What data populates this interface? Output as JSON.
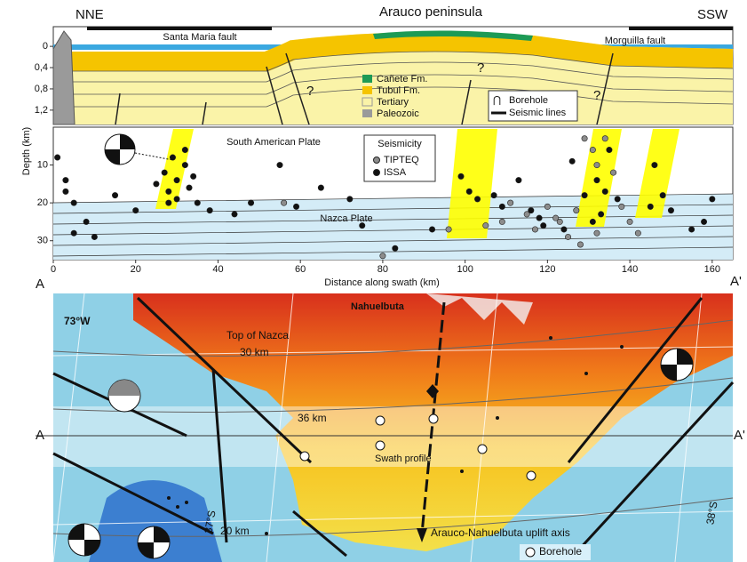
{
  "figure": {
    "nne": "NNE",
    "ssw": "SSW",
    "peninsula": "Arauco peninsula",
    "santa_maria": "Santa Maria fault",
    "morguilla": "Morguilla fault",
    "question_mark": "?",
    "legend_units": [
      "Cañete Fm.",
      "Tubul Fm.",
      "Tertiary",
      "Paleozoic"
    ],
    "legend_symbols": [
      "Borehole",
      "Seismic lines"
    ],
    "south_american_plate": "South American Plate",
    "nazca_plate": "Nazca Plate",
    "profile_start": "A",
    "profile_end": "A'",
    "map": {
      "nahuelbuta": "Nahuelbuta",
      "lon": "73°W",
      "top_nazca": "Top of Nazca",
      "c30": "30 km",
      "c36": "36 km",
      "c20": "20 km",
      "swath": "Swath profile",
      "axis": "Arauco-Nahuelbuta uplift axis",
      "borehole": "Borehole",
      "lat37": "37°S",
      "lat38": "38°S"
    }
  },
  "section": {
    "ylim": [
      -0.37,
      1.47
    ],
    "yticks": [
      0,
      {
        "value": 0.4,
        "label": "0,4"
      },
      {
        "value": 0.8,
        "label": "0,8"
      },
      {
        "value": 1.2,
        "label": "1,2"
      }
    ]
  },
  "chart_data": {
    "type": "scatter",
    "ylabel": "Depth (km)",
    "xlabel": "Distance along swath (km)",
    "legend_title": "Seismicity",
    "xlim": [
      0,
      165
    ],
    "ylim": [
      0,
      35
    ],
    "y_inverted": true,
    "xticks": [
      0,
      20,
      40,
      60,
      80,
      100,
      120,
      140,
      160
    ],
    "yticks": [
      10,
      20,
      30
    ],
    "series": [
      {
        "name": "TIPTEQ",
        "color": "#8c8c8c",
        "x": [
          56,
          96,
          109,
          111,
          115,
          117,
          120,
          122,
          123,
          125,
          127,
          129,
          131,
          132,
          134,
          136,
          138,
          140,
          142,
          105,
          80,
          132,
          128
        ],
        "values": [
          20,
          27,
          25,
          20,
          23,
          27,
          21,
          24,
          25,
          29,
          22,
          3,
          6,
          10,
          3,
          12,
          21,
          25,
          28,
          26,
          34,
          28,
          31
        ]
      },
      {
        "name": "ISSA",
        "color": "#111111",
        "x": [
          1,
          3,
          3,
          5,
          8,
          10,
          5,
          15,
          20,
          25,
          27,
          28,
          30,
          30,
          32,
          33,
          32,
          34,
          28,
          29,
          35,
          38,
          44,
          48,
          55,
          59,
          65,
          75,
          83,
          92,
          99,
          101,
          103,
          107,
          109,
          113,
          116,
          119,
          124,
          126,
          129,
          132,
          133,
          135,
          137,
          146,
          148,
          150,
          155,
          158,
          160,
          145,
          134,
          131,
          118,
          72
        ],
        "values": [
          8,
          14,
          17,
          20,
          25,
          29,
          28,
          18,
          22,
          15,
          12,
          17,
          14,
          19,
          10,
          16,
          6,
          13,
          20,
          8,
          20,
          22,
          23,
          20,
          10,
          21,
          16,
          26,
          32,
          27,
          13,
          17,
          19,
          18,
          21,
          14,
          22,
          26,
          27,
          9,
          18,
          14,
          23,
          6,
          19,
          10,
          18,
          22,
          27,
          25,
          19,
          21,
          17,
          25,
          24,
          19
        ]
      }
    ]
  }
}
